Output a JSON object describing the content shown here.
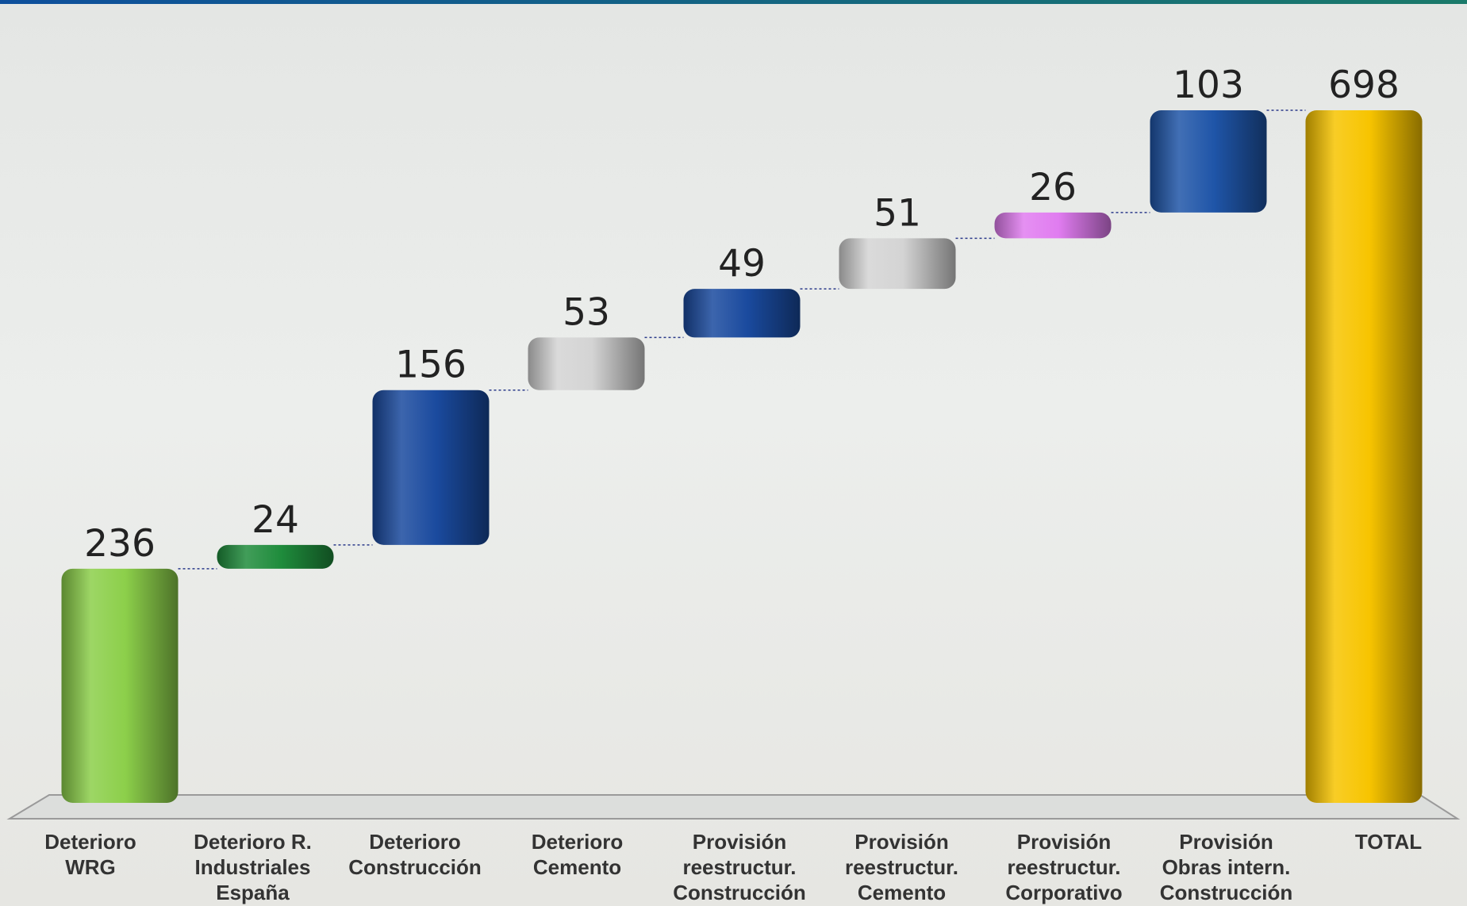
{
  "chart_data": {
    "type": "waterfall",
    "categories": [
      "Deterioro\nWRG",
      "Deterioro R.\nIndustriales\nEspaña",
      "Deterioro\nConstrucción",
      "Deterioro\nCemento",
      "Provisión\nreestructur.\nConstrucción",
      "Provisión\nreestructur.\nCemento",
      "Provisión\nreestructur.\nCorporativo",
      "Provisión\nObras intern.\nConstrucción",
      "TOTAL"
    ],
    "values": [
      236,
      24,
      156,
      53,
      49,
      51,
      26,
      103,
      698
    ],
    "colors": [
      "#8ccf4a",
      "#1f8c3c",
      "#1a4a9e",
      "#d4d4d4",
      "#1a4a9e",
      "#d4d4d4",
      "#e07cf0",
      "#1f55a8",
      "#f7c400"
    ]
  }
}
